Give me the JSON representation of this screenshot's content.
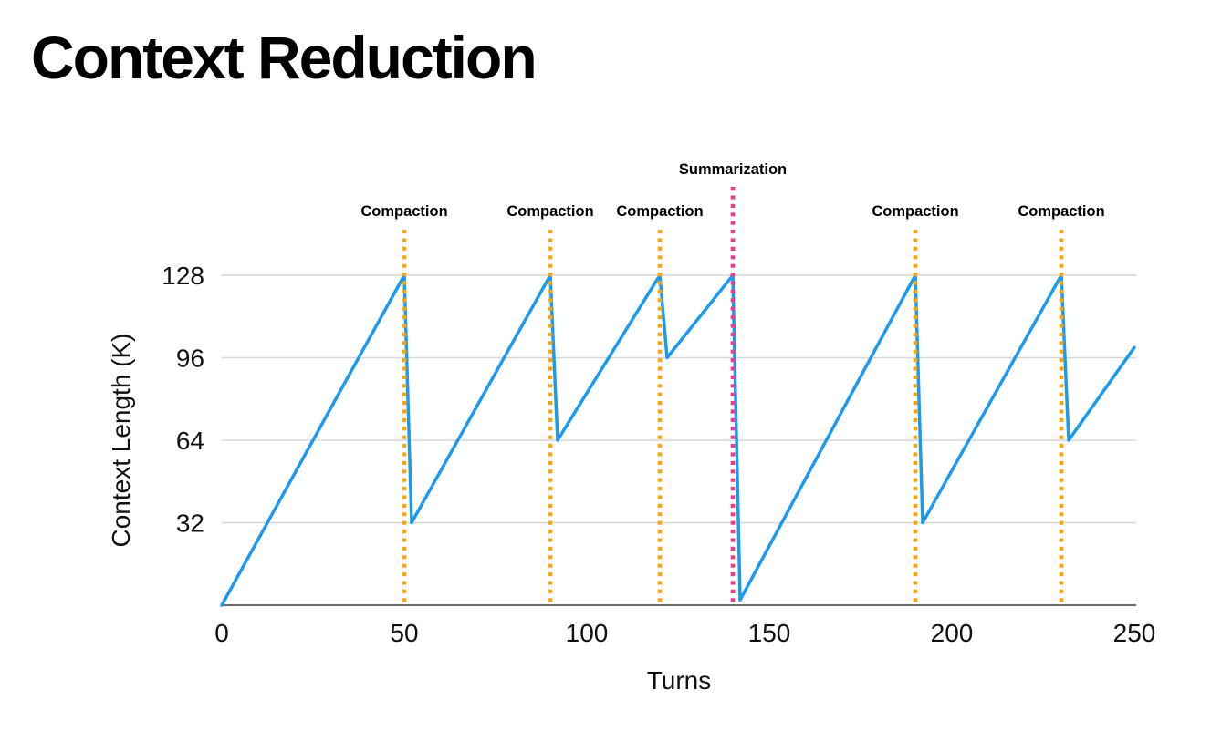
{
  "page": {
    "title": "Context Reduction",
    "background": "#FFFFFF"
  },
  "chart_data": {
    "type": "line",
    "title": "Context Reduction",
    "xlabel": "Turns",
    "ylabel": "Context Length (K)",
    "xlim": [
      0,
      250
    ],
    "ylim": [
      0,
      128
    ],
    "x_ticks": [
      0,
      50,
      100,
      150,
      200,
      250
    ],
    "y_ticks": [
      32,
      64,
      96,
      128
    ],
    "grid": "horizontal-only",
    "legend": "none",
    "series": [
      {
        "name": "context-length",
        "color": "#1B9BF0",
        "points": [
          [
            0,
            0
          ],
          [
            50,
            128
          ],
          [
            52,
            32
          ],
          [
            90,
            128
          ],
          [
            92,
            64
          ],
          [
            120,
            128
          ],
          [
            122,
            96
          ],
          [
            140,
            128
          ],
          [
            142,
            2
          ],
          [
            190,
            128
          ],
          [
            192,
            32
          ],
          [
            230,
            128
          ],
          [
            232,
            64
          ],
          [
            250,
            100
          ]
        ]
      }
    ],
    "events": [
      {
        "label": "Compaction",
        "x": 50,
        "type": "compaction",
        "color": "#FFA40D"
      },
      {
        "label": "Compaction",
        "x": 90,
        "type": "compaction",
        "color": "#FFA40D"
      },
      {
        "label": "Compaction",
        "x": 120,
        "type": "compaction",
        "color": "#FFA40D"
      },
      {
        "label": "Summarization",
        "x": 140,
        "type": "summarization",
        "color": "#F5398E"
      },
      {
        "label": "Compaction",
        "x": 190,
        "type": "compaction",
        "color": "#FFA40D"
      },
      {
        "label": "Compaction",
        "x": 230,
        "type": "compaction",
        "color": "#FFA40D"
      }
    ],
    "colors": {
      "series": "#1B9BF0",
      "compaction": "#FFA40D",
      "summarization": "#F5398E",
      "gridline": "#D5D5D5",
      "axis_line": "#3B3B3B",
      "tick_text": "#111111",
      "event_text": "#000000"
    }
  }
}
